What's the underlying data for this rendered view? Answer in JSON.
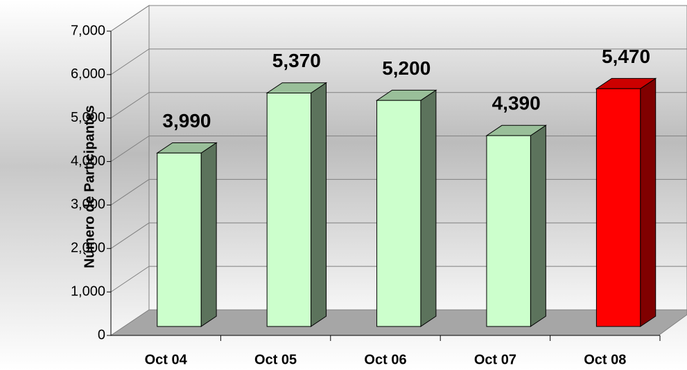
{
  "chart_data": {
    "type": "bar3d",
    "y_axis_label": "Número de Participantes",
    "categories": [
      "Oct 04",
      "Oct 05",
      "Oct 06",
      "Oct 07",
      "Oct 08"
    ],
    "values": [
      3990,
      5370,
      5200,
      4390,
      5470
    ],
    "value_labels": [
      "3,990",
      "5,370",
      "5,200",
      "4,390",
      "5,470"
    ],
    "colors": [
      "#ccffcc",
      "#ccffcc",
      "#ccffcc",
      "#ccffcc",
      "#ff0000"
    ],
    "ylim": [
      0,
      7000
    ],
    "yticks": [
      0,
      {
        "value": 1000,
        "label": "1,000"
      },
      {
        "value": 2000,
        "label": "2,000"
      },
      {
        "value": 3000,
        "label": "3,000"
      },
      {
        "value": 4000,
        "label": "4,000"
      },
      {
        "value": 5000,
        "label": "5,000"
      },
      {
        "value": 6000,
        "label": "6,000"
      },
      {
        "value": 7000,
        "label": "7,000"
      }
    ],
    "grid": true
  }
}
